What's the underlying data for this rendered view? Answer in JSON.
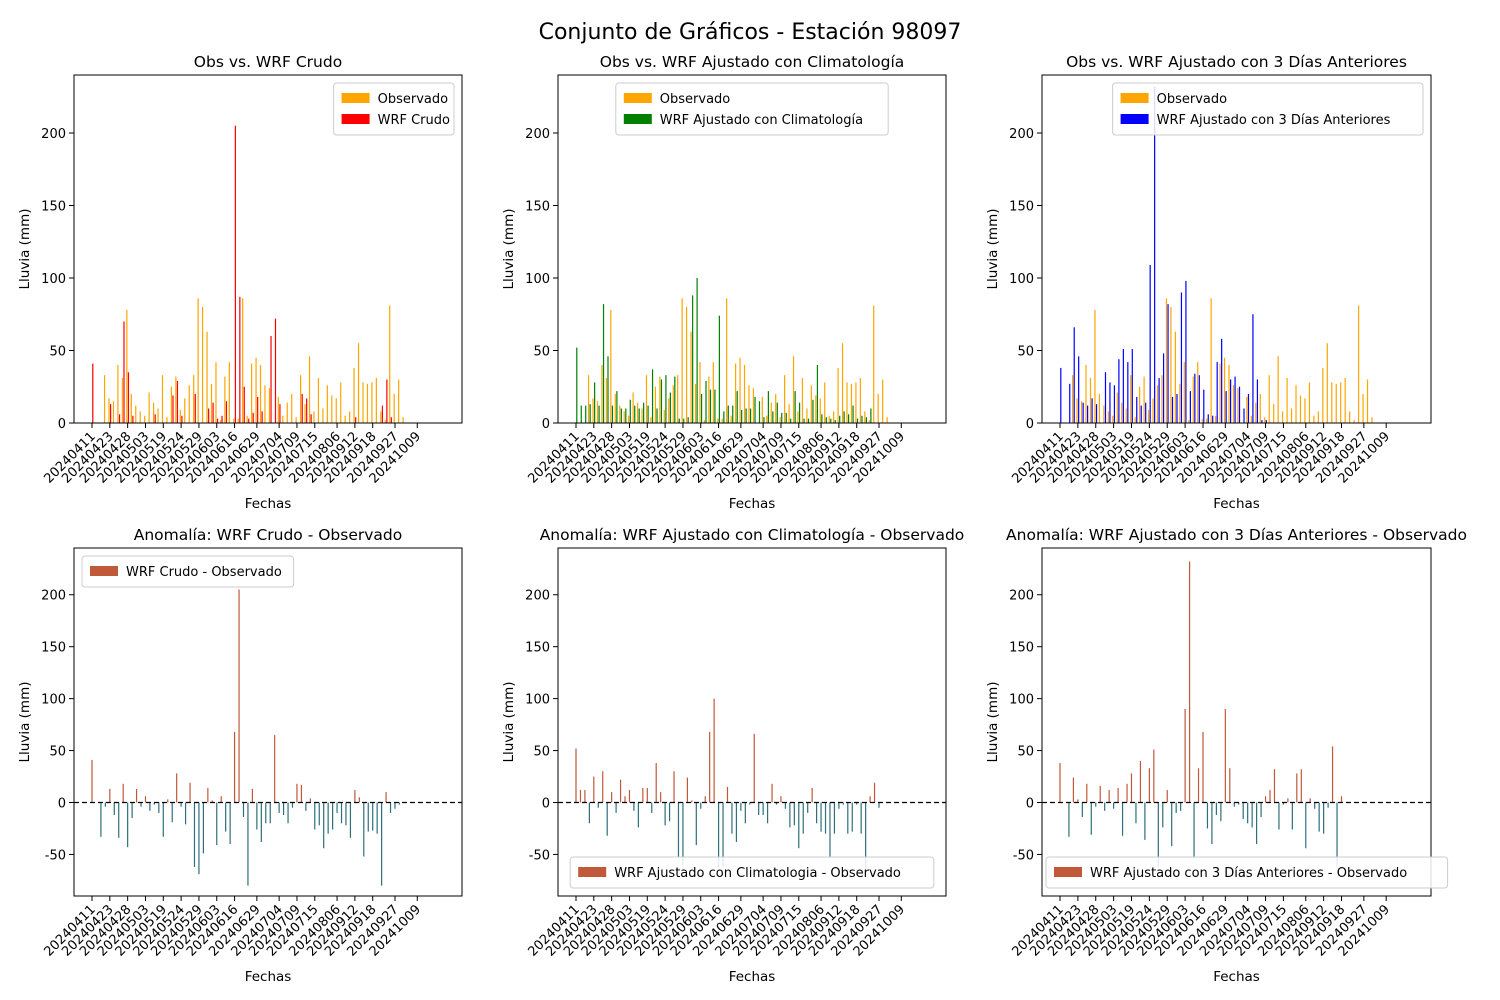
{
  "figure": {
    "suptitle": "Conjunto de Gráficos - Estación 98097"
  },
  "colors": {
    "observado": "#ffa500",
    "wrf_crudo": "#ff0000",
    "wrf_climatologia": "#008000",
    "wrf_3dias": "#0000ff",
    "anomaly_positive": "#c0583a",
    "anomaly_negative": "#2e6f7a"
  },
  "chart_data": [
    {
      "type": "bar",
      "title": "Obs vs. WRF Crudo",
      "xlabel": "Fechas",
      "ylabel": "Lluvia (mm)",
      "ylim": [
        0,
        240
      ],
      "yticks": [
        0,
        50,
        100,
        150,
        200
      ],
      "legend_position": "upper-right",
      "x_tick_labels": [
        "20240411",
        "20240423",
        "20240428",
        "20240503",
        "20240519",
        "20240524",
        "20240529",
        "20240603",
        "20240616",
        "20240629",
        "20240704",
        "20240709",
        "20240715",
        "20240806",
        "20240912",
        "20240918",
        "20240927",
        "20241009"
      ],
      "n_days": 80,
      "series": [
        {
          "name": "Observado",
          "color_key": "observado",
          "values": [
            0,
            0,
            0,
            33,
            17,
            15,
            40,
            31,
            78,
            20,
            12,
            8,
            5,
            21,
            14,
            10,
            33,
            4,
            25,
            32,
            9,
            17,
            26,
            33,
            86,
            80,
            63,
            27,
            42,
            2,
            32,
            42,
            3,
            3,
            86,
            5,
            41,
            45,
            40,
            26,
            24,
            0,
            18,
            5,
            14,
            20,
            4,
            33,
            13,
            46,
            8,
            31,
            10,
            26,
            19,
            17,
            28,
            5,
            8,
            38,
            55,
            28,
            27,
            28,
            31,
            8,
            2,
            81,
            20,
            30,
            4,
            0,
            0,
            0,
            0,
            0,
            0,
            0,
            0,
            0
          ]
        },
        {
          "name": "WRF Crudo",
          "color_key": "wrf_crudo",
          "values": [
            41,
            0,
            0,
            0,
            13,
            0,
            6,
            70,
            35,
            5,
            0,
            0,
            0,
            0,
            6,
            0,
            0,
            0,
            19,
            29,
            5,
            0,
            0,
            20,
            0,
            0,
            10,
            14,
            3,
            5,
            15,
            0,
            205,
            87,
            25,
            3,
            7,
            18,
            8,
            0,
            60,
            72,
            13,
            0,
            0,
            0,
            0,
            20,
            17,
            6,
            0,
            0,
            0,
            0,
            0,
            0,
            0,
            0,
            0,
            4,
            0,
            0,
            0,
            0,
            0,
            12,
            30,
            4,
            0,
            0,
            0,
            0,
            0,
            0,
            0,
            0,
            0,
            0,
            0,
            0
          ]
        }
      ]
    },
    {
      "type": "bar",
      "title": "Obs vs. WRF Ajustado con Climatología",
      "xlabel": "Fechas",
      "ylabel": "Lluvia (mm)",
      "ylim": [
        0,
        240
      ],
      "yticks": [
        0,
        50,
        100,
        150,
        200
      ],
      "legend_position": "upper-center",
      "x_tick_labels": [
        "20240411",
        "20240423",
        "20240428",
        "20240503",
        "20240519",
        "20240524",
        "20240529",
        "20240603",
        "20240616",
        "20240629",
        "20240704",
        "20240709",
        "20240715",
        "20240806",
        "20240912",
        "20240918",
        "20240927",
        "20241009"
      ],
      "n_days": 80,
      "series": [
        {
          "name": "Observado",
          "color_key": "observado",
          "values": [
            0,
            0,
            0,
            33,
            17,
            15,
            40,
            31,
            78,
            20,
            12,
            8,
            5,
            21,
            14,
            10,
            33,
            4,
            25,
            32,
            9,
            17,
            26,
            33,
            86,
            80,
            63,
            27,
            42,
            2,
            32,
            42,
            3,
            3,
            86,
            5,
            41,
            45,
            40,
            26,
            24,
            0,
            18,
            5,
            14,
            20,
            4,
            33,
            13,
            46,
            8,
            31,
            10,
            26,
            19,
            17,
            28,
            5,
            8,
            38,
            55,
            28,
            27,
            28,
            31,
            8,
            2,
            81,
            20,
            30,
            4,
            0,
            0,
            0,
            0,
            0,
            0,
            0,
            0,
            0
          ]
        },
        {
          "name": "WRF Ajustado con Climatología",
          "color_key": "wrf_climatologia",
          "values": [
            52,
            12,
            12,
            13,
            28,
            12,
            82,
            46,
            12,
            22,
            10,
            10,
            16,
            12,
            10,
            14,
            12,
            37,
            10,
            30,
            33,
            21,
            32,
            3,
            3,
            4,
            88,
            100,
            20,
            29,
            23,
            23,
            74,
            8,
            12,
            12,
            22,
            9,
            10,
            10,
            18,
            15,
            4,
            22,
            8,
            14,
            7,
            7,
            3,
            22,
            14,
            3,
            3,
            16,
            40,
            6,
            4,
            3,
            2,
            5,
            8,
            6,
            12,
            3,
            5,
            4,
            10,
            0,
            0,
            0,
            0,
            0,
            0,
            0,
            0,
            0,
            0,
            0,
            0,
            0
          ]
        }
      ]
    },
    {
      "type": "bar",
      "title": "Obs vs. WRF Ajustado con 3 Días Anteriores",
      "xlabel": "Fechas",
      "ylabel": "Lluvia (mm)",
      "ylim": [
        0,
        240
      ],
      "yticks": [
        0,
        50,
        100,
        150,
        200
      ],
      "legend_position": "upper-right",
      "x_tick_labels": [
        "20240411",
        "20240423",
        "20240428",
        "20240503",
        "20240519",
        "20240524",
        "20240529",
        "20240603",
        "20240616",
        "20240629",
        "20240704",
        "20240709",
        "20240715",
        "20240806",
        "20240912",
        "20240918",
        "20240927",
        "20241009"
      ],
      "n_days": 80,
      "series": [
        {
          "name": "Observado",
          "color_key": "observado",
          "values": [
            0,
            0,
            0,
            33,
            17,
            15,
            40,
            31,
            78,
            20,
            12,
            8,
            5,
            21,
            14,
            10,
            33,
            4,
            25,
            32,
            9,
            17,
            26,
            33,
            86,
            80,
            63,
            27,
            42,
            2,
            32,
            42,
            3,
            3,
            86,
            5,
            41,
            45,
            40,
            26,
            24,
            0,
            18,
            5,
            14,
            20,
            4,
            33,
            13,
            46,
            8,
            31,
            10,
            26,
            19,
            17,
            28,
            5,
            8,
            38,
            55,
            28,
            27,
            28,
            31,
            8,
            2,
            81,
            20,
            30,
            4,
            0,
            0,
            0,
            0,
            0,
            0,
            0,
            0,
            0
          ]
        },
        {
          "name": "WRF Ajustado con 3 Días Anteriores",
          "color_key": "wrf_3dias",
          "values": [
            38,
            0,
            27,
            66,
            46,
            14,
            12,
            17,
            13,
            0,
            35,
            28,
            26,
            44,
            51,
            42,
            51,
            18,
            12,
            14,
            109,
            232,
            31,
            48,
            82,
            18,
            20,
            90,
            98,
            22,
            34,
            33,
            23,
            6,
            5,
            42,
            58,
            22,
            30,
            32,
            25,
            10,
            20,
            75,
            30,
            2,
            2,
            0,
            0,
            0,
            0,
            0,
            0,
            0,
            0,
            0,
            0,
            0,
            0,
            0,
            0,
            0,
            0,
            0,
            0,
            0,
            0,
            0,
            0,
            0,
            0,
            0,
            0,
            0,
            0,
            0,
            0,
            0,
            0,
            0
          ]
        }
      ]
    },
    {
      "type": "bar",
      "title": "Anomalía: WRF Crudo - Observado",
      "xlabel": "Fechas",
      "ylabel": "Lluvia (mm)",
      "ylim": [
        -90,
        245
      ],
      "yticks": [
        -50,
        0,
        50,
        100,
        150,
        200
      ],
      "reference_line": 0,
      "legend_position": "upper-left",
      "x_tick_labels": [
        "20240411",
        "20240423",
        "20240428",
        "20240503",
        "20240519",
        "20240524",
        "20240529",
        "20240603",
        "20240616",
        "20240629",
        "20240704",
        "20240709",
        "20240715",
        "20240806",
        "20240912",
        "20240918",
        "20240927",
        "20241009"
      ],
      "n_days": 80,
      "series": [
        {
          "name": "WRF Crudo - Observado",
          "color_key": "anomaly_positive",
          "values": [
            41,
            0,
            -33,
            -4,
            13,
            -12,
            -34,
            18,
            -43,
            -15,
            13,
            -4,
            6,
            -8,
            -2,
            -10,
            -33,
            3,
            -19,
            28,
            -4,
            -21,
            19,
            -62,
            -69,
            -49,
            14,
            2,
            -41,
            6,
            -28,
            -40,
            68,
            205,
            -14,
            -80,
            13,
            -26,
            -38,
            -20,
            -20,
            65,
            -10,
            -12,
            -20,
            -5,
            18,
            17,
            -8,
            4,
            -26,
            -22,
            -44,
            -30,
            -26,
            -10,
            -20,
            -22,
            -34,
            12,
            5,
            -52,
            -28,
            -27,
            -30,
            -80,
            10,
            -10,
            -6,
            -2,
            0,
            0,
            0,
            0,
            0,
            0,
            0,
            0,
            0,
            0
          ]
        }
      ]
    },
    {
      "type": "bar",
      "title": "Anomalía: WRF Ajustado con Climatología - Observado",
      "xlabel": "Fechas",
      "ylabel": "Lluvia (mm)",
      "ylim": [
        -90,
        245
      ],
      "yticks": [
        -50,
        0,
        50,
        100,
        150,
        200
      ],
      "reference_line": 0,
      "legend_position": "lower-center",
      "x_tick_labels": [
        "20240411",
        "20240423",
        "20240428",
        "20240503",
        "20240519",
        "20240524",
        "20240529",
        "20240603",
        "20240616",
        "20240629",
        "20240704",
        "20240709",
        "20240715",
        "20240806",
        "20240912",
        "20240918",
        "20240927",
        "20241009"
      ],
      "n_days": 80,
      "series": [
        {
          "name": "WRF Ajustado con Climatologia - Observado",
          "color_key": "anomaly_positive",
          "values": [
            52,
            12,
            12,
            -20,
            25,
            -5,
            30,
            -32,
            10,
            -10,
            22,
            6,
            12,
            -8,
            -24,
            14,
            14,
            -10,
            38,
            10,
            -22,
            -18,
            30,
            -52,
            -60,
            24,
            2,
            -41,
            -6,
            6,
            68,
            100,
            -63,
            -62,
            15,
            -30,
            -38,
            -8,
            -20,
            -2,
            66,
            -12,
            -12,
            -20,
            18,
            -2,
            6,
            -6,
            -24,
            -22,
            -44,
            -30,
            -10,
            14,
            -20,
            -28,
            -30,
            -52,
            -30,
            -6,
            -2,
            -30,
            -28,
            -2,
            -30,
            -64,
            6,
            19,
            -5,
            0,
            0,
            0,
            0,
            0,
            0,
            0,
            0,
            0,
            0,
            0
          ]
        }
      ]
    },
    {
      "type": "bar",
      "title": "Anomalía: WRF Ajustado con 3 Días Anteriores - Observado",
      "xlabel": "Fechas",
      "ylabel": "Lluvia (mm)",
      "ylim": [
        -90,
        245
      ],
      "yticks": [
        -50,
        0,
        50,
        100,
        150,
        200
      ],
      "reference_line": 0,
      "legend_position": "lower-right",
      "x_tick_labels": [
        "20240411",
        "20240423",
        "20240428",
        "20240503",
        "20240519",
        "20240524",
        "20240529",
        "20240603",
        "20240616",
        "20240629",
        "20240704",
        "20240709",
        "20240715",
        "20240806",
        "20240912",
        "20240918",
        "20240927",
        "20241009"
      ],
      "n_days": 80,
      "series": [
        {
          "name": "WRF Ajustado con 3 Días Anteriores - Observado",
          "color_key": "anomaly_positive",
          "values": [
            38,
            0,
            -33,
            24,
            3,
            -14,
            18,
            -31,
            -4,
            16,
            -8,
            12,
            -6,
            14,
            -32,
            18,
            28,
            -20,
            40,
            -36,
            33,
            51,
            -62,
            -24,
            12,
            -42,
            -10,
            -8,
            90,
            232,
            -54,
            33,
            68,
            -25,
            -40,
            -12,
            -18,
            90,
            33,
            -4,
            -2,
            -16,
            -20,
            -24,
            -40,
            -14,
            6,
            12,
            32,
            -26,
            -2,
            4,
            -26,
            28,
            32,
            -44,
            4,
            -6,
            -28,
            -30,
            -5,
            54,
            -62,
            6,
            0,
            0,
            0,
            0,
            0,
            0,
            0,
            0,
            0,
            0,
            0,
            0,
            0,
            0,
            0,
            0
          ]
        }
      ]
    }
  ]
}
